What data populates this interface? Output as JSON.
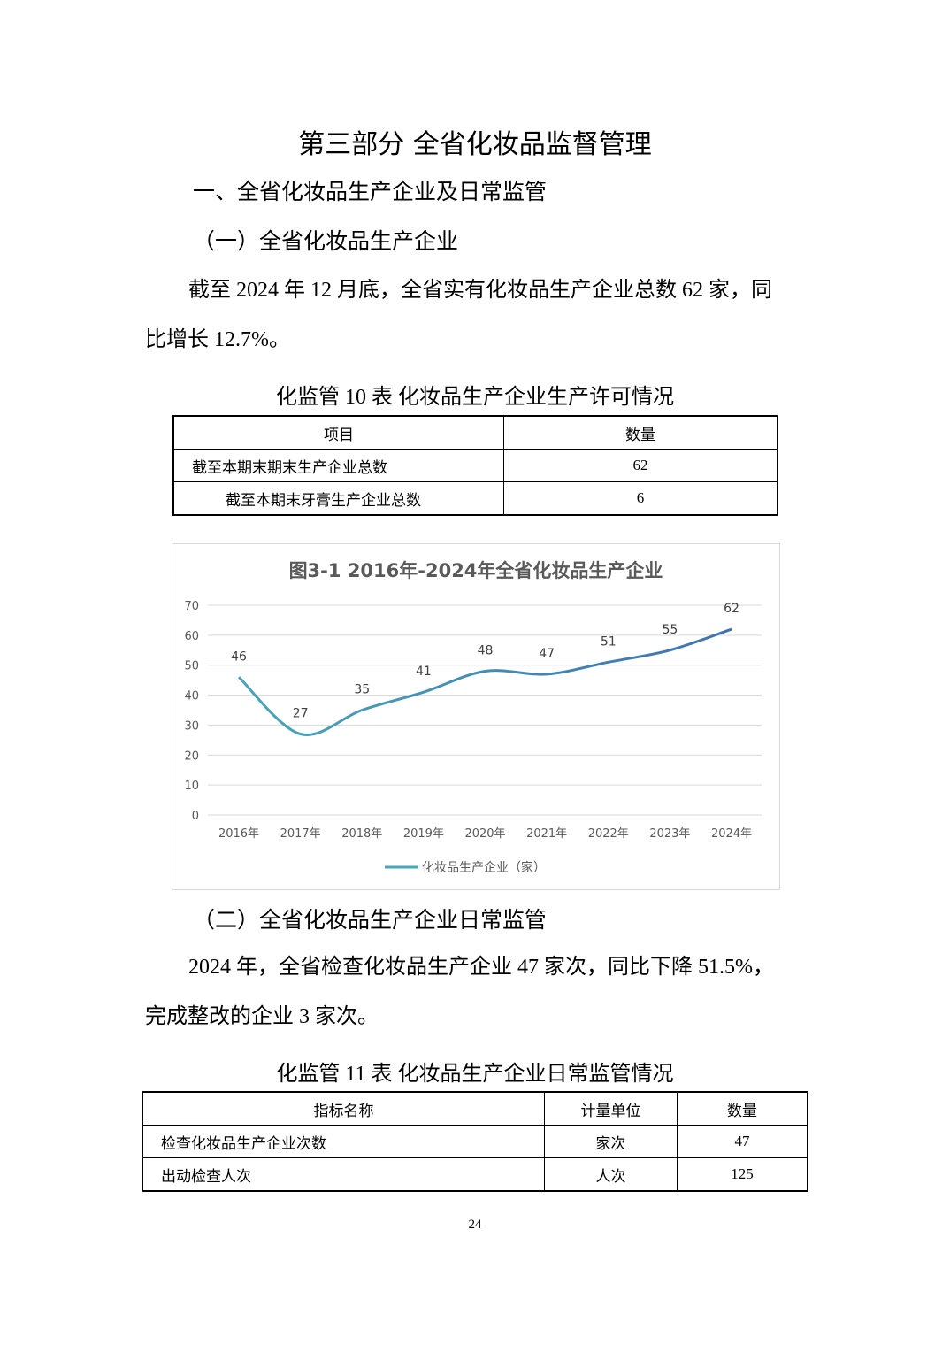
{
  "title": "第三部分  全省化妆品监督管理",
  "section1": "一、全省化妆品生产企业及日常监管",
  "sub1": "（一）全省化妆品生产企业",
  "para1_line1": "截至 2024 年 12 月底，全省实有化妆品生产企业总数 62 家，同",
  "para1_line2": "比增长 12.7%。",
  "table1": {
    "caption": "化监管 10 表    化妆品生产企业生产许可情况",
    "headers": [
      "项目",
      "数量"
    ],
    "rows": [
      [
        "截至本期末期末生产企业总数",
        "62"
      ],
      [
        "截至本期末牙膏生产企业总数",
        "6"
      ]
    ]
  },
  "chart_data": {
    "type": "line",
    "title": "图3-1  2016年-2024年全省化妆品生产企业",
    "categories": [
      "2016年",
      "2017年",
      "2018年",
      "2019年",
      "2020年",
      "2021年",
      "2022年",
      "2023年",
      "2024年"
    ],
    "series": [
      {
        "name": "化妆品生产企业（家）",
        "values": [
          46,
          27,
          35,
          41,
          48,
          47,
          51,
          55,
          62
        ],
        "color": "#4aa6b8"
      }
    ],
    "yticks": [
      "0",
      "10",
      "20",
      "30",
      "40",
      "50",
      "60",
      "70"
    ],
    "ylim": [
      0,
      70
    ],
    "grid": true,
    "smooth": true,
    "legend": "bottom"
  },
  "sub2": "（二）全省化妆品生产企业日常监管",
  "para2_line1": "2024 年，全省检查化妆品生产企业 47 家次，同比下降 51.5%，",
  "para2_line2": "完成整改的企业 3 家次。",
  "table2": {
    "caption": "化监管 11 表    化妆品生产企业日常监管情况",
    "headers": [
      "指标名称",
      "计量单位",
      "数量"
    ],
    "rows": [
      [
        "检查化妆品生产企业次数",
        "家次",
        "47"
      ],
      [
        "出动检查人次",
        "人次",
        "125"
      ]
    ]
  },
  "page_number": "24"
}
